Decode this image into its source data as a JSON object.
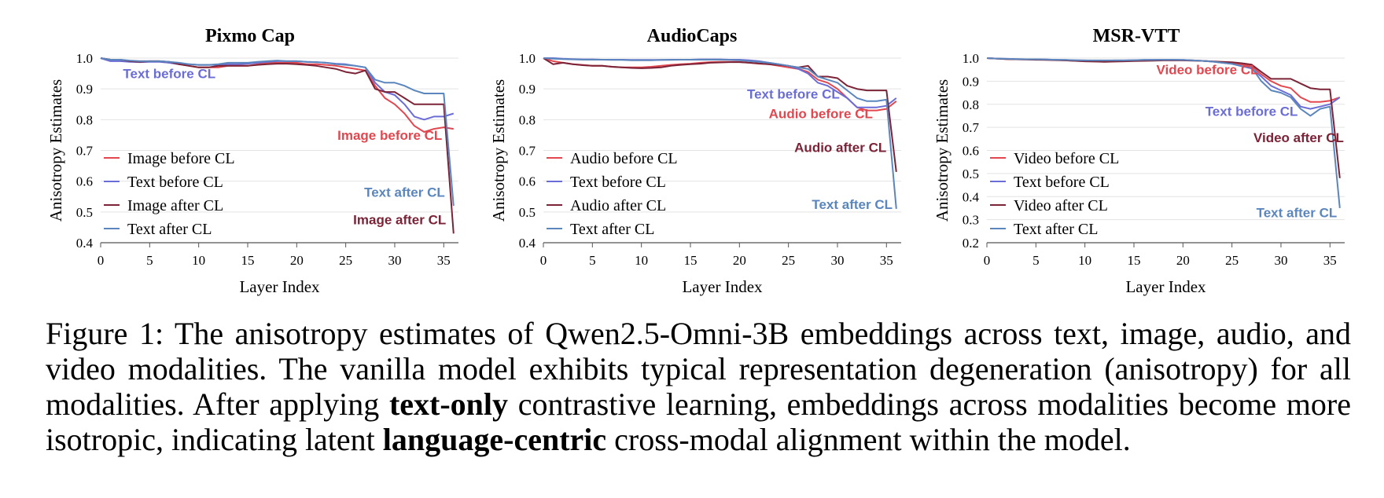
{
  "chart_data": [
    {
      "type": "line",
      "title": "Pixmo Cap",
      "xlabel": "Layer Index",
      "ylabel": "Anisotropy Estimates",
      "xlim": [
        0,
        36.5
      ],
      "ylim": [
        0.4,
        1.0
      ],
      "xticks": [
        "0",
        "5",
        "10",
        "15",
        "20",
        "25",
        "30",
        "35"
      ],
      "yticks": [
        "0.4",
        "0.5",
        "0.6",
        "0.7",
        "0.8",
        "0.9",
        "1.0"
      ],
      "grid": "horizontal",
      "legend_position": "bottom-left",
      "x": [
        0,
        1,
        2,
        3,
        4,
        5,
        6,
        7,
        8,
        9,
        10,
        11,
        12,
        13,
        14,
        15,
        16,
        17,
        18,
        19,
        20,
        21,
        22,
        23,
        24,
        25,
        26,
        27,
        28,
        29,
        30,
        31,
        32,
        33,
        34,
        35,
        36
      ],
      "series": [
        {
          "name": "Image before CL",
          "color": "#e2474f",
          "values": [
            1.0,
            0.995,
            0.995,
            0.99,
            0.99,
            0.99,
            0.99,
            0.985,
            0.98,
            0.975,
            0.97,
            0.97,
            0.97,
            0.975,
            0.975,
            0.975,
            0.98,
            0.985,
            0.985,
            0.985,
            0.985,
            0.98,
            0.98,
            0.978,
            0.975,
            0.97,
            0.965,
            0.96,
            0.91,
            0.87,
            0.85,
            0.82,
            0.78,
            0.76,
            0.77,
            0.775,
            0.77
          ]
        },
        {
          "name": "Text before CL",
          "color": "#6b6dd6",
          "values": [
            1.0,
            0.99,
            0.99,
            0.988,
            0.987,
            0.988,
            0.988,
            0.985,
            0.98,
            0.98,
            0.978,
            0.978,
            0.978,
            0.98,
            0.98,
            0.982,
            0.985,
            0.988,
            0.99,
            0.99,
            0.99,
            0.988,
            0.987,
            0.985,
            0.982,
            0.98,
            0.975,
            0.97,
            0.92,
            0.89,
            0.88,
            0.85,
            0.81,
            0.8,
            0.81,
            0.81,
            0.82
          ]
        },
        {
          "name": "Image after CL",
          "color": "#7b2337",
          "values": [
            1.0,
            0.995,
            0.995,
            0.99,
            0.988,
            0.99,
            0.99,
            0.988,
            0.98,
            0.975,
            0.97,
            0.97,
            0.975,
            0.975,
            0.975,
            0.975,
            0.978,
            0.98,
            0.982,
            0.982,
            0.98,
            0.978,
            0.975,
            0.97,
            0.965,
            0.955,
            0.95,
            0.96,
            0.9,
            0.89,
            0.89,
            0.87,
            0.85,
            0.85,
            0.85,
            0.85,
            0.43
          ]
        },
        {
          "name": "Text after CL",
          "color": "#5b86bd",
          "values": [
            1.0,
            0.995,
            0.995,
            0.992,
            0.99,
            0.99,
            0.99,
            0.988,
            0.985,
            0.98,
            0.978,
            0.978,
            0.98,
            0.985,
            0.985,
            0.985,
            0.988,
            0.99,
            0.992,
            0.99,
            0.99,
            0.988,
            0.987,
            0.985,
            0.98,
            0.978,
            0.975,
            0.97,
            0.93,
            0.92,
            0.92,
            0.91,
            0.895,
            0.885,
            0.885,
            0.885,
            0.52
          ]
        }
      ],
      "annotations": [
        {
          "text": "Text before CL",
          "x": 7,
          "y": 0.935,
          "color": "#6b6dd6"
        },
        {
          "text": "Image before CL",
          "x": 29.5,
          "y": 0.735,
          "color": "#e2474f"
        },
        {
          "text": "Text after CL",
          "x": 31,
          "y": 0.55,
          "color": "#5b86bd"
        },
        {
          "text": "Image after CL",
          "x": 30.5,
          "y": 0.46,
          "color": "#7b2337"
        }
      ]
    },
    {
      "type": "line",
      "title": "AudioCaps",
      "xlabel": "Layer Index",
      "ylabel": "Anisotropy Estimates",
      "xlim": [
        0,
        36.5
      ],
      "ylim": [
        0.4,
        1.0
      ],
      "xticks": [
        "0",
        "5",
        "10",
        "15",
        "20",
        "25",
        "30",
        "35"
      ],
      "yticks": [
        "0.4",
        "0.5",
        "0.6",
        "0.7",
        "0.8",
        "0.9",
        "1.0"
      ],
      "grid": "horizontal",
      "legend_position": "bottom-left",
      "x": [
        0,
        1,
        2,
        3,
        4,
        5,
        6,
        7,
        8,
        9,
        10,
        11,
        12,
        13,
        14,
        15,
        16,
        17,
        18,
        19,
        20,
        21,
        22,
        23,
        24,
        25,
        26,
        27,
        28,
        29,
        30,
        31,
        32,
        33,
        34,
        35,
        36
      ],
      "series": [
        {
          "name": "Audio before CL",
          "color": "#e2474f",
          "values": [
            1.0,
            0.99,
            0.985,
            0.98,
            0.978,
            0.975,
            0.975,
            0.972,
            0.97,
            0.97,
            0.97,
            0.972,
            0.975,
            0.978,
            0.98,
            0.982,
            0.985,
            0.987,
            0.988,
            0.988,
            0.988,
            0.985,
            0.982,
            0.98,
            0.975,
            0.97,
            0.965,
            0.955,
            0.93,
            0.92,
            0.9,
            0.87,
            0.84,
            0.83,
            0.83,
            0.835,
            0.86
          ]
        },
        {
          "name": "Text before CL",
          "color": "#6b6dd6",
          "values": [
            1.0,
            1.0,
            0.998,
            0.997,
            0.996,
            0.996,
            0.995,
            0.995,
            0.995,
            0.994,
            0.994,
            0.994,
            0.994,
            0.995,
            0.995,
            0.995,
            0.996,
            0.996,
            0.996,
            0.995,
            0.995,
            0.993,
            0.99,
            0.985,
            0.98,
            0.975,
            0.965,
            0.95,
            0.92,
            0.91,
            0.89,
            0.87,
            0.84,
            0.84,
            0.84,
            0.845,
            0.87
          ]
        },
        {
          "name": "Audio after CL",
          "color": "#7b2337",
          "values": [
            1.0,
            0.98,
            0.985,
            0.98,
            0.977,
            0.975,
            0.975,
            0.972,
            0.97,
            0.968,
            0.967,
            0.968,
            0.97,
            0.975,
            0.978,
            0.98,
            0.982,
            0.985,
            0.986,
            0.987,
            0.987,
            0.985,
            0.983,
            0.98,
            0.978,
            0.975,
            0.97,
            0.975,
            0.94,
            0.94,
            0.935,
            0.91,
            0.9,
            0.895,
            0.895,
            0.895,
            0.63
          ]
        },
        {
          "name": "Text after CL",
          "color": "#5b86bd",
          "values": [
            1.0,
            0.998,
            0.997,
            0.996,
            0.995,
            0.995,
            0.995,
            0.994,
            0.994,
            0.993,
            0.993,
            0.993,
            0.994,
            0.994,
            0.995,
            0.995,
            0.995,
            0.995,
            0.995,
            0.994,
            0.993,
            0.99,
            0.988,
            0.985,
            0.98,
            0.975,
            0.97,
            0.965,
            0.94,
            0.93,
            0.92,
            0.895,
            0.87,
            0.86,
            0.86,
            0.865,
            0.51
          ]
        }
      ],
      "annotations": [
        {
          "text": "Text before CL",
          "x": 25.5,
          "y": 0.868,
          "color": "#6b6dd6"
        },
        {
          "text": "Audio before CL",
          "x": 28.3,
          "y": 0.805,
          "color": "#e2474f"
        },
        {
          "text": "Audio after CL",
          "x": 30.3,
          "y": 0.695,
          "color": "#7b2337"
        },
        {
          "text": "Text after CL",
          "x": 31.5,
          "y": 0.51,
          "color": "#5b86bd"
        }
      ]
    },
    {
      "type": "line",
      "title": "MSR-VTT",
      "xlabel": "Layer Index",
      "ylabel": "Anisotropy Estimates",
      "xlim": [
        0,
        36.5
      ],
      "ylim": [
        0.2,
        1.0
      ],
      "xticks": [
        "0",
        "5",
        "10",
        "15",
        "20",
        "25",
        "30",
        "35"
      ],
      "yticks": [
        "0.2",
        "0.3",
        "0.4",
        "0.5",
        "0.6",
        "0.7",
        "0.8",
        "0.9",
        "1.0"
      ],
      "grid": "horizontal",
      "legend_position": "bottom-left",
      "x": [
        0,
        1,
        2,
        3,
        4,
        5,
        6,
        7,
        8,
        9,
        10,
        11,
        12,
        13,
        14,
        15,
        16,
        17,
        18,
        19,
        20,
        21,
        22,
        23,
        24,
        25,
        26,
        27,
        28,
        29,
        30,
        31,
        32,
        33,
        34,
        35,
        36
      ],
      "series": [
        {
          "name": "Video before CL",
          "color": "#e2474f",
          "values": [
            1.0,
            0.998,
            0.996,
            0.995,
            0.994,
            0.994,
            0.993,
            0.992,
            0.99,
            0.988,
            0.987,
            0.986,
            0.985,
            0.986,
            0.987,
            0.988,
            0.99,
            0.991,
            0.992,
            0.992,
            0.991,
            0.99,
            0.988,
            0.985,
            0.982,
            0.978,
            0.972,
            0.965,
            0.93,
            0.9,
            0.88,
            0.87,
            0.83,
            0.81,
            0.81,
            0.815,
            0.83
          ]
        },
        {
          "name": "Text before CL",
          "color": "#6b6dd6",
          "values": [
            1.0,
            0.998,
            0.997,
            0.996,
            0.995,
            0.995,
            0.994,
            0.993,
            0.992,
            0.99,
            0.99,
            0.989,
            0.989,
            0.99,
            0.99,
            0.991,
            0.992,
            0.993,
            0.993,
            0.993,
            0.992,
            0.99,
            0.988,
            0.985,
            0.98,
            0.975,
            0.965,
            0.955,
            0.92,
            0.88,
            0.86,
            0.84,
            0.79,
            0.78,
            0.79,
            0.8,
            0.83
          ]
        },
        {
          "name": "Video after CL",
          "color": "#7b2337",
          "values": [
            1.0,
            0.998,
            0.996,
            0.995,
            0.994,
            0.993,
            0.992,
            0.991,
            0.99,
            0.988,
            0.986,
            0.985,
            0.984,
            0.985,
            0.986,
            0.987,
            0.988,
            0.989,
            0.99,
            0.99,
            0.99,
            0.989,
            0.988,
            0.986,
            0.984,
            0.982,
            0.978,
            0.972,
            0.94,
            0.91,
            0.91,
            0.91,
            0.89,
            0.87,
            0.865,
            0.865,
            0.48
          ]
        },
        {
          "name": "Text after CL",
          "color": "#5b86bd",
          "values": [
            1.0,
            0.998,
            0.997,
            0.996,
            0.995,
            0.995,
            0.994,
            0.993,
            0.992,
            0.991,
            0.99,
            0.99,
            0.99,
            0.99,
            0.99,
            0.991,
            0.992,
            0.992,
            0.993,
            0.993,
            0.992,
            0.99,
            0.988,
            0.985,
            0.98,
            0.975,
            0.965,
            0.96,
            0.9,
            0.86,
            0.85,
            0.83,
            0.78,
            0.75,
            0.78,
            0.79,
            0.35
          ]
        }
      ],
      "annotations": [
        {
          "text": "Video before CL",
          "x": 22.5,
          "y": 0.93,
          "color": "#e2474f"
        },
        {
          "text": "Text before CL",
          "x": 27,
          "y": 0.75,
          "color": "#6b6dd6"
        },
        {
          "text": "Video after CL",
          "x": 31.8,
          "y": 0.635,
          "color": "#7b2337"
        },
        {
          "text": "Text after CL",
          "x": 31.6,
          "y": 0.31,
          "color": "#5b86bd"
        }
      ]
    }
  ],
  "caption": {
    "part1": "Figure 1: The anisotropy estimates of Qwen2.5-Omni-3B embeddings across text, image, audio, and video modalities. The vanilla model exhibits typical representation degeneration (anisotropy) for all modalities. After applying ",
    "bold1": "text-only",
    "part2": " contrastive learning, embeddings across modalities become more isotropic, indicating latent ",
    "bold2": "language-centric",
    "part3": " cross-modal alignment within the model."
  }
}
